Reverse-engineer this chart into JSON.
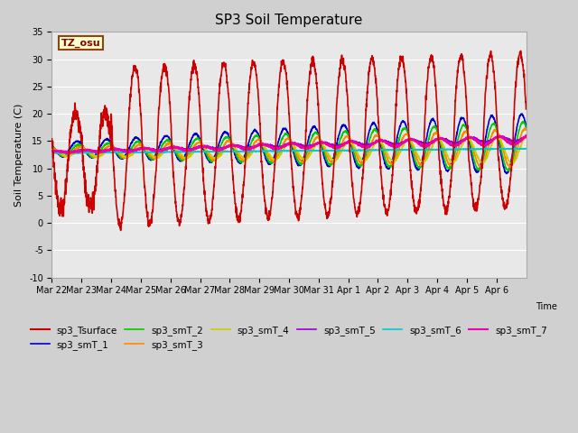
{
  "title": "SP3 Soil Temperature",
  "ylabel": "Soil Temperature (C)",
  "xlabel": "Time",
  "tz_label": "TZ_osu",
  "ylim": [
    -10,
    35
  ],
  "series": {
    "sp3_Tsurface": {
      "color": "#cc0000",
      "lw": 1.2
    },
    "sp3_smT_1": {
      "color": "#0000cc",
      "lw": 1.2
    },
    "sp3_smT_2": {
      "color": "#00cc00",
      "lw": 1.2
    },
    "sp3_smT_3": {
      "color": "#ff8800",
      "lw": 1.2
    },
    "sp3_smT_4": {
      "color": "#cccc00",
      "lw": 1.2
    },
    "sp3_smT_5": {
      "color": "#9900cc",
      "lw": 1.2
    },
    "sp3_smT_6": {
      "color": "#00cccc",
      "lw": 1.2
    },
    "sp3_smT_7": {
      "color": "#ee00aa",
      "lw": 1.5
    }
  },
  "x_tick_labels": [
    "Mar 22",
    "Mar 23",
    "Mar 24",
    "Mar 25",
    "Mar 26",
    "Mar 27",
    "Mar 28",
    "Mar 29",
    "Mar 30",
    "Mar 31",
    "Apr 1",
    "Apr 2",
    "Apr 3",
    "Apr 4",
    "Apr 5",
    "Apr 6"
  ],
  "n_days": 16,
  "pts_per_day": 144,
  "title_fontsize": 11,
  "tick_fontsize": 7,
  "yticks": [
    -10,
    -5,
    0,
    5,
    10,
    15,
    20,
    25,
    30,
    35
  ]
}
